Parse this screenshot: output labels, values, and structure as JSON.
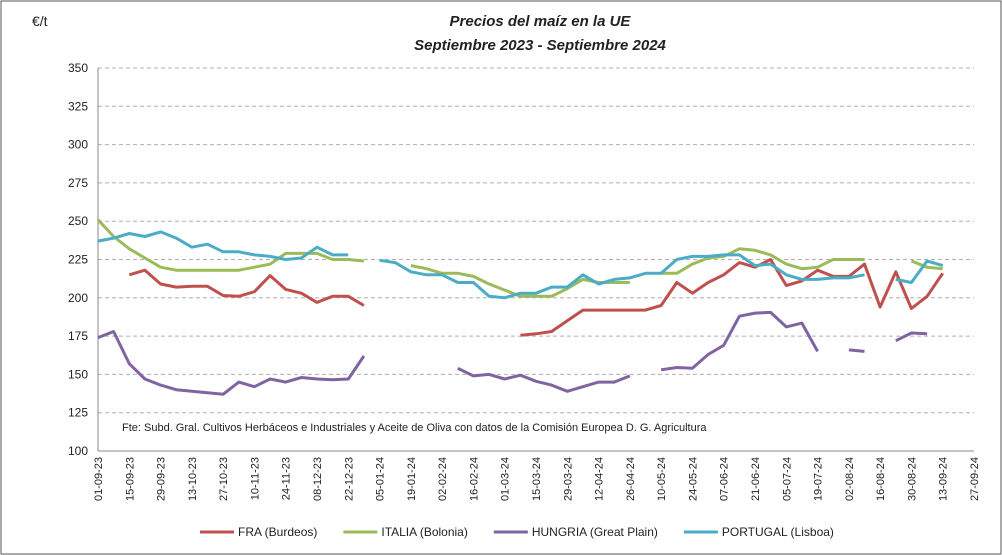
{
  "chart_data": {
    "type": "line",
    "title": "Precios del maíz en la UE",
    "subtitle": "Septiembre 2023 - Septiembre 2024",
    "y_label": "€/t",
    "annotation": "Fte: Subd. Gral. Cultivos Herbáceos e Industriales y Aceite de Oliva con datos de la Comisión Europea D. G. Agricultura",
    "categories": [
      "01-09-23",
      null,
      "15-09-23",
      null,
      "29-09-23",
      null,
      "13-10-23",
      null,
      "27-10-23",
      null,
      "10-11-23",
      null,
      "24-11-23",
      null,
      "08-12-23",
      null,
      "22-12-23",
      null,
      "05-01-24",
      null,
      "19-01-24",
      null,
      "02-02-24",
      null,
      "16-02-24",
      null,
      "01-03-24",
      null,
      "15-03-24",
      null,
      "29-03-24",
      null,
      "12-04-24",
      null,
      "26-04-24",
      null,
      "10-05-24",
      null,
      "24-05-24",
      null,
      "07-06-24",
      null,
      "21-06-24",
      null,
      "05-07-24",
      null,
      "19-07-24",
      null,
      "02-08-24",
      null,
      "16-08-24",
      null,
      "30-08-24",
      null,
      "13-09-24",
      null,
      "27-09-24"
    ],
    "series": [
      {
        "name": "FRA (Burdeos)",
        "color": "#c0504d",
        "values": [
          null,
          null,
          215,
          218,
          209,
          207,
          207.5,
          207.5,
          201.5,
          201,
          204,
          214.5,
          205.5,
          203,
          197,
          201,
          201,
          195,
          null,
          null,
          null,
          null,
          null,
          null,
          null,
          null,
          null,
          175.5,
          176.5,
          178,
          185,
          192,
          192,
          192,
          192,
          192,
          195,
          210,
          203,
          210,
          215,
          223,
          220,
          225,
          208,
          211,
          218,
          214,
          214,
          222,
          194,
          217,
          193,
          201,
          216,
          null,
          null
        ]
      },
      {
        "name": "ITALIA (Bolonia)",
        "color": "#9bbb59",
        "values": [
          251,
          240,
          232,
          226,
          220,
          218,
          218,
          218,
          218,
          218,
          220,
          222,
          229,
          229,
          229,
          225,
          225,
          224,
          null,
          null,
          221,
          219,
          216,
          216,
          214,
          209,
          205,
          201,
          201,
          201,
          206,
          212,
          210,
          210,
          210,
          null,
          216,
          216,
          222,
          226,
          227,
          232,
          231,
          228,
          222,
          219,
          220,
          225,
          225,
          225,
          null,
          null,
          224,
          220,
          219,
          null,
          null
        ]
      },
      {
        "name": "HUNGRIA (Great Plain)",
        "color": "#8064a2",
        "values": [
          174,
          178,
          157,
          147,
          143,
          140,
          139,
          138,
          137,
          145,
          142,
          147,
          145,
          148,
          147,
          146.5,
          147,
          162,
          null,
          null,
          null,
          null,
          null,
          154,
          149,
          150,
          147,
          149.5,
          145.5,
          143,
          139,
          142,
          145,
          145,
          149,
          null,
          153,
          154.5,
          154,
          163,
          169,
          188,
          190,
          190.5,
          181,
          183.5,
          165,
          null,
          166,
          165,
          null,
          172,
          177,
          176.5,
          null,
          null,
          null
        ]
      },
      {
        "name": "PORTUGAL (Lisboa)",
        "color": "#4bacc6",
        "values": [
          237,
          239,
          242,
          240,
          243,
          239,
          233,
          235,
          230,
          230,
          228,
          227,
          225,
          226,
          233,
          228,
          228,
          null,
          224.5,
          223,
          217,
          215,
          215,
          210,
          210,
          201,
          200,
          203,
          203,
          207,
          207,
          215,
          209,
          212,
          213,
          216,
          216,
          225,
          227,
          227,
          228,
          228,
          221,
          222,
          215,
          212,
          212,
          213,
          213,
          215,
          null,
          212,
          210,
          224,
          221,
          null,
          null
        ]
      }
    ],
    "ylim": [
      100,
      350
    ],
    "yticks": [
      100,
      125,
      150,
      175,
      200,
      225,
      250,
      275,
      300,
      325,
      350
    ],
    "grid": true
  }
}
